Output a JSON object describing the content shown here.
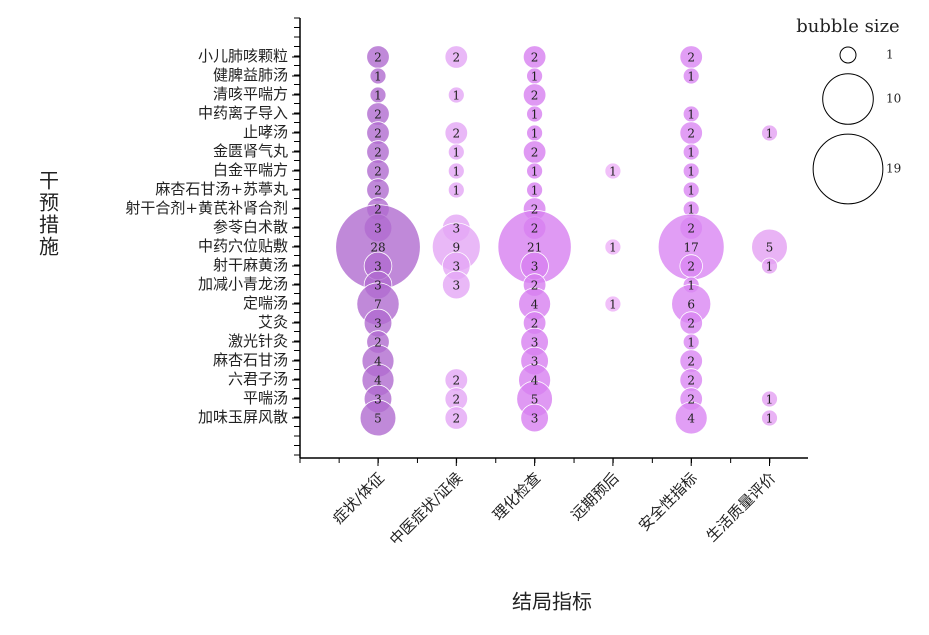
{
  "chart_data": {
    "type": "bubble",
    "xlabel": "结局指标",
    "ylabel": "干预措施",
    "categories": [
      "症状/体征",
      "中医症状/证候",
      "理化检查",
      "远期预后",
      "安全性指标",
      "生活质量评价"
    ],
    "y_categories": [
      "小儿肺咳颗粒",
      "健脾益肺汤",
      "清咳平喘方",
      "中药离子导入",
      "止哮汤",
      "金匮肾气丸",
      "白金平喘方",
      "麻杏石甘汤+苏葶丸",
      "射干合剂+黄芪补肾合剂",
      "参苓白术散",
      "中药穴位贴敷",
      "射干麻黄汤",
      "加减小青龙汤",
      "定喘汤",
      "艾灸",
      "激光针灸",
      "麻杏石甘汤",
      "六君子汤",
      "平喘汤",
      "加味玉屏风散"
    ],
    "series": [
      {
        "color": "#b06cd0",
        "values": [
          2,
          1,
          1,
          2,
          2,
          2,
          2,
          2,
          2,
          3,
          28,
          3,
          3,
          7,
          3,
          2,
          4,
          4,
          3,
          5
        ]
      },
      {
        "color": "#e4a6f5",
        "values": [
          2,
          null,
          1,
          null,
          2,
          1,
          1,
          1,
          null,
          3,
          9,
          3,
          3,
          null,
          null,
          null,
          null,
          2,
          2,
          2
        ]
      },
      {
        "color": "#d77ff0",
        "values": [
          2,
          1,
          2,
          1,
          1,
          2,
          1,
          1,
          2,
          2,
          21,
          3,
          2,
          4,
          2,
          3,
          3,
          4,
          5,
          3
        ]
      },
      {
        "color": "#eeb0f8",
        "values": [
          null,
          null,
          null,
          null,
          null,
          null,
          1,
          null,
          null,
          null,
          1,
          null,
          null,
          1,
          null,
          null,
          null,
          null,
          null,
          null
        ]
      },
      {
        "color": "#da86f2",
        "values": [
          2,
          1,
          null,
          1,
          2,
          1,
          1,
          1,
          1,
          2,
          17,
          2,
          1,
          6,
          2,
          1,
          2,
          2,
          2,
          4
        ]
      },
      {
        "color": "#e3a0f3",
        "values": [
          null,
          null,
          null,
          null,
          1,
          null,
          null,
          null,
          null,
          null,
          5,
          1,
          null,
          null,
          null,
          null,
          null,
          null,
          1,
          1
        ]
      }
    ],
    "size_legend": {
      "title": "bubble size",
      "values": [
        1,
        10,
        19
      ]
    }
  }
}
